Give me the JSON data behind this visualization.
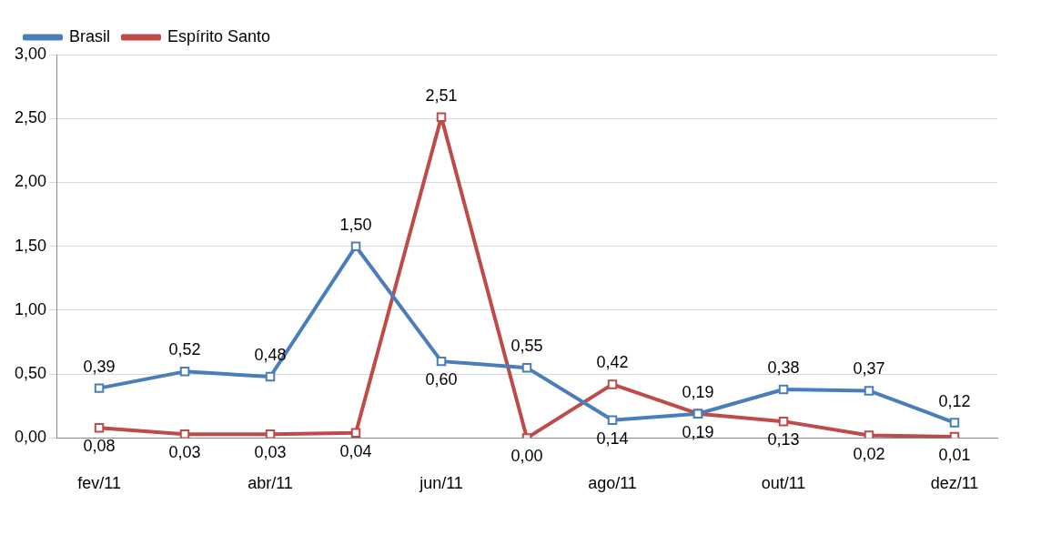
{
  "chart_data": {
    "type": "line",
    "categories": [
      "fev/11",
      null,
      "abr/11",
      null,
      "jun/11",
      null,
      "ago/11",
      null,
      "out/11",
      null,
      "dez/11"
    ],
    "series": [
      {
        "name": "Brasil",
        "color": "#4a7ebb",
        "values": [
          0.39,
          0.52,
          0.48,
          1.5,
          0.6,
          0.55,
          0.14,
          0.19,
          0.38,
          0.37,
          0.12
        ],
        "value_labels": [
          "0,39",
          "0,52",
          "0,48",
          "1,50",
          "0,60",
          "0,55",
          "0,14",
          "0,19",
          "0,38",
          "0,37",
          "0,12"
        ]
      },
      {
        "name": "Espírito Santo",
        "color": "#be4b48",
        "values": [
          0.08,
          0.03,
          0.03,
          0.04,
          2.51,
          0.0,
          0.42,
          0.19,
          0.13,
          0.02,
          0.01
        ],
        "value_labels": [
          "0,08",
          "0,03",
          "0,03",
          "0,04",
          "2,51",
          "0,00",
          "0,42",
          "0,19",
          "0,13",
          "0,02",
          "0,01"
        ]
      }
    ],
    "ylim": [
      0,
      3
    ],
    "yticks": [
      {
        "value": 0,
        "label": "0,00"
      },
      {
        "value": 0.5,
        "label": "0,50"
      },
      {
        "value": 1,
        "label": "1,00"
      },
      {
        "value": 1.5,
        "label": "1,50"
      },
      {
        "value": 2,
        "label": "2,00"
      },
      {
        "value": 2.5,
        "label": "2,50"
      },
      {
        "value": 3,
        "label": "3,00"
      }
    ],
    "grid": "y",
    "legend": "top left",
    "marker": "square",
    "line_style": "solid"
  }
}
